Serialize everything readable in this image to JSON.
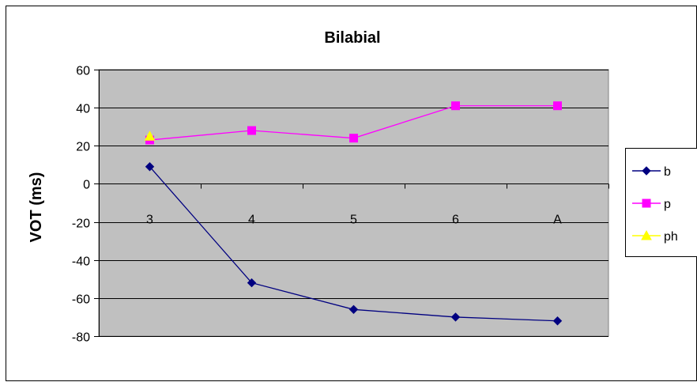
{
  "chart_data": {
    "type": "line",
    "title": "Bilabial",
    "xlabel": "",
    "ylabel": "VOT (ms)",
    "ylim": [
      -80,
      60
    ],
    "yticks": [
      60,
      40,
      20,
      0,
      -20,
      -40,
      -60,
      -80
    ],
    "categories": [
      "3",
      "4",
      "5",
      "6",
      "A"
    ],
    "grid": true,
    "legend_position": "right",
    "plot_background": "#c0c0c0",
    "series": [
      {
        "name": "b",
        "color": "#000080",
        "marker": "diamond",
        "values": [
          9,
          -52,
          -66,
          -70,
          -72
        ]
      },
      {
        "name": "p",
        "color": "#ff00ff",
        "marker": "square",
        "values": [
          23,
          28,
          24,
          41,
          41
        ]
      },
      {
        "name": "ph",
        "color": "#ffff00",
        "marker": "triangle",
        "values": [
          25,
          null,
          null,
          null,
          null
        ]
      }
    ]
  }
}
